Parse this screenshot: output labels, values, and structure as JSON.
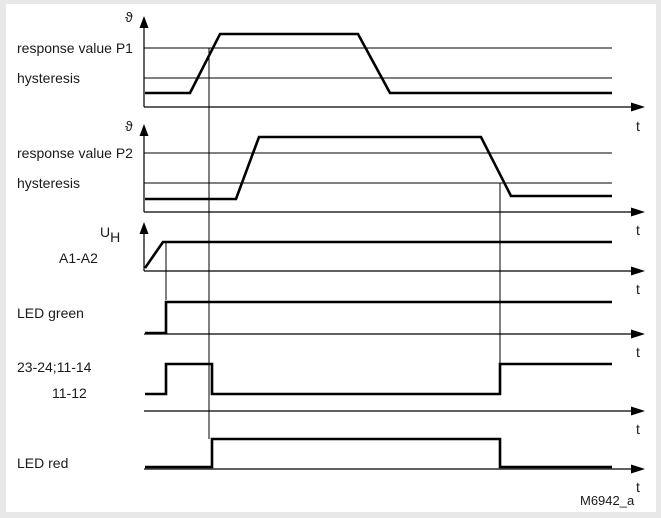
{
  "diagram": {
    "code": "M6942_a",
    "panels": [
      {
        "id": "temp-p1",
        "y_label": "ϑ",
        "levels": [
          "response value P1",
          "hysteresis"
        ],
        "time_label": "t"
      },
      {
        "id": "temp-p2",
        "y_label": "ϑ",
        "levels": [
          "response value P2",
          "hysteresis"
        ],
        "time_label": "t"
      },
      {
        "id": "supply",
        "y_label_main": "U",
        "y_label_sub": "H",
        "label": "A1-A2",
        "time_label": "t"
      },
      {
        "id": "led-green",
        "label": "LED green",
        "time_label": "t"
      },
      {
        "id": "contacts",
        "labels": [
          "23-24;11-14",
          "11-12"
        ],
        "time_label": "t"
      },
      {
        "id": "led-red",
        "label": "LED red",
        "time_label": "t"
      }
    ]
  }
}
